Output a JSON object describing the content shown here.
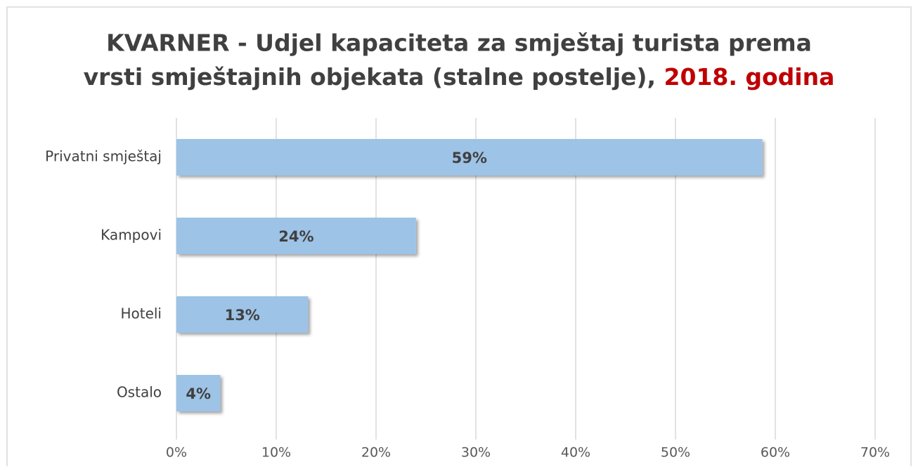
{
  "chart_data": {
    "type": "bar",
    "orientation": "horizontal",
    "title_lines": [
      "KVARNER - Udjel kapaciteta za smještaj turista prema",
      "vrsti smještajnih objekata (stalne postelje), "
    ],
    "title_highlight": "2018. godina",
    "categories": [
      "Privatni smještaj",
      "Kampovi",
      "Hoteli",
      "Ostalo"
    ],
    "values": [
      58.7,
      24.0,
      13.2,
      4.4
    ],
    "value_labels": [
      "59%",
      "24%",
      "13%",
      "4%"
    ],
    "color": "#9dc3e6",
    "xlim": [
      0,
      70
    ],
    "xticks": [
      {
        "value": 0,
        "label": "0%"
      },
      {
        "value": 10,
        "label": "10%"
      },
      {
        "value": 20,
        "label": "20%"
      },
      {
        "value": 30,
        "label": "30%"
      },
      {
        "value": 40,
        "label": "40%"
      },
      {
        "value": 50,
        "label": "50%"
      },
      {
        "value": 60,
        "label": "60%"
      },
      {
        "value": 70,
        "label": "70%"
      }
    ],
    "grid": true
  }
}
